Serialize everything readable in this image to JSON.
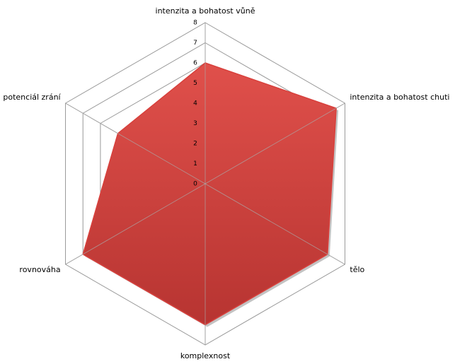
{
  "chart_data": {
    "type": "radar",
    "categories": [
      "intenzita a bohatost vůně",
      "intenzita a bohatost chuti",
      "tělo",
      "komplexnost",
      "rovnováha",
      "potenciál zrání"
    ],
    "series": [
      {
        "color": "#d8403c",
        "values": [
          6,
          7.5,
          7,
          7,
          7,
          5
        ]
      }
    ],
    "ylim": [
      0,
      8
    ],
    "yticks": [
      0,
      1,
      2,
      3,
      4,
      5,
      6,
      7,
      8
    ],
    "grid": true
  }
}
